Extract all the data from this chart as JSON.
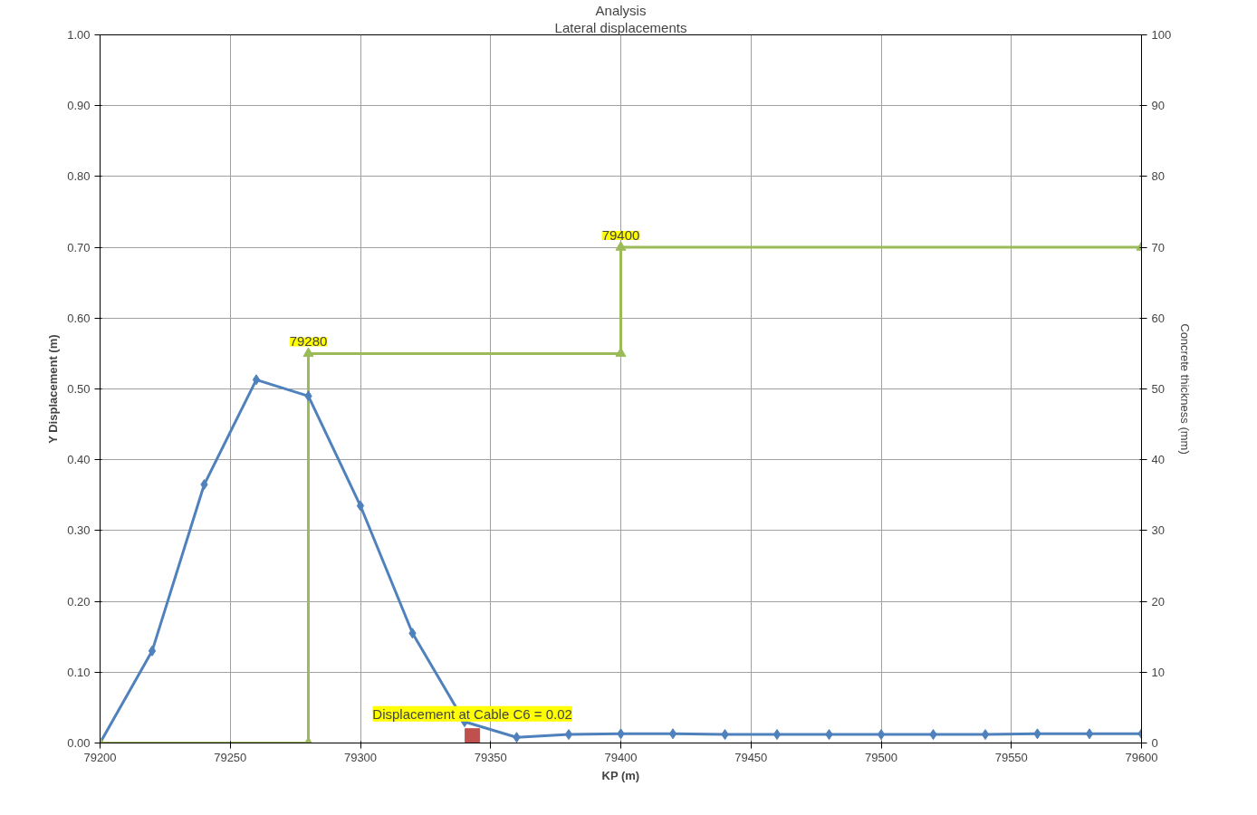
{
  "chart_data": {
    "type": "line",
    "title": "Analysis",
    "subtitle": "Lateral displacements",
    "xlabel": "KP (m)",
    "ylabel": "Y Displacement (m)",
    "y2label": "Concrete thickness (mm)",
    "xlim": [
      79200,
      79600
    ],
    "xticks": [
      79200,
      79250,
      79300,
      79350,
      79400,
      79450,
      79500,
      79550,
      79600
    ],
    "ylim": [
      0,
      1
    ],
    "yticks": [
      {
        "value": 0,
        "label": "0.00"
      },
      {
        "value": 0.1,
        "label": "0.10"
      },
      {
        "value": 0.2,
        "label": "0.20"
      },
      {
        "value": 0.3,
        "label": "0.30"
      },
      {
        "value": 0.4,
        "label": "0.40"
      },
      {
        "value": 0.5,
        "label": "0.50"
      },
      {
        "value": 0.6,
        "label": "0.60"
      },
      {
        "value": 0.7,
        "label": "0.70"
      },
      {
        "value": 0.8,
        "label": "0.80"
      },
      {
        "value": 0.9,
        "label": "0.90"
      },
      {
        "value": 1,
        "label": "1.00"
      }
    ],
    "y2lim": [
      0,
      100
    ],
    "y2ticks": [
      0,
      10,
      20,
      30,
      40,
      50,
      60,
      70,
      80,
      90,
      100
    ],
    "grid": true,
    "line_style": "solid",
    "series": [
      {
        "color": "#4f81bd",
        "marker": "diamond",
        "x": [
          79200,
          79220,
          79240,
          79260,
          79280,
          79300,
          79320,
          79340,
          79360,
          79380,
          79400,
          79420,
          79440,
          79460,
          79480,
          79500,
          79520,
          79540,
          79560,
          79580,
          79600
        ],
        "values": [
          0,
          0.13,
          0.365,
          0.513,
          0.49,
          0.335,
          0.155,
          0.03,
          0.008,
          0.012,
          0.013,
          0.013,
          0.012,
          0.012,
          0.012,
          0.012,
          0.012,
          0.012,
          0.013,
          0.013,
          0.013
        ]
      },
      {
        "axis": "y2",
        "color": "#9bbb59",
        "marker": "triangle",
        "x": [
          79200,
          79280,
          79280,
          79400,
          79400,
          79600
        ],
        "values": [
          0,
          0,
          55,
          55,
          70,
          70
        ]
      },
      {
        "type": "scatter",
        "color": "#c0504d",
        "marker": "square",
        "x": [
          79343
        ],
        "values": [
          0.01
        ]
      }
    ],
    "annotations": [
      {
        "text": "79280",
        "x": 79280,
        "y": 0.55
      },
      {
        "text": "79400",
        "x": 79400,
        "y": 0.7
      },
      {
        "text": "Displacement at Cable C6 = 0.02",
        "x": 79343,
        "y": 0.02
      }
    ]
  }
}
